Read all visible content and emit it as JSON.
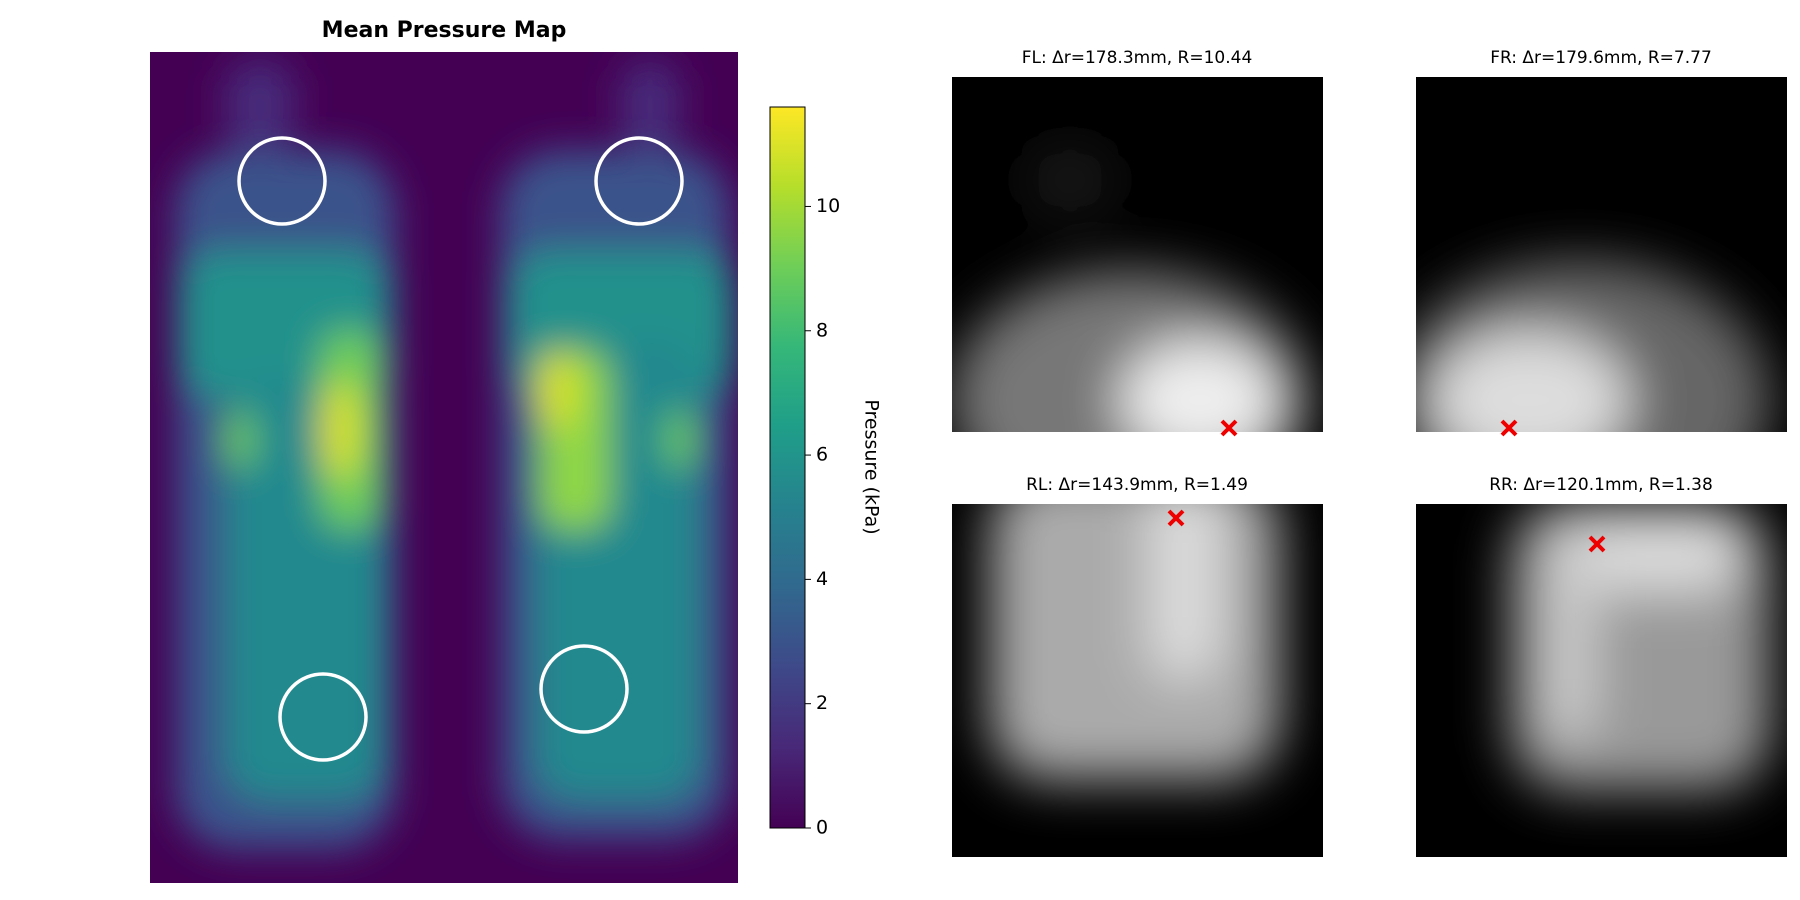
{
  "chart_data": [
    {
      "type": "heatmap",
      "title": "Mean Pressure Map",
      "colorbar": {
        "label": "Pressure (kPa)",
        "colormap": "viridis",
        "lim": [
          0,
          11.6
        ],
        "ticks": [
          0,
          2,
          4,
          6,
          8,
          10
        ]
      }
    },
    {
      "type": "image",
      "title": "FL: Δr=178.3mm, R=10.44"
    },
    {
      "type": "image",
      "title": "FR: Δr=179.6mm, R=7.77"
    },
    {
      "type": "image",
      "title": "RL: Δr=143.9mm, R=1.49"
    },
    {
      "type": "image",
      "title": "RR: Δr=120.1mm, R=1.38"
    }
  ]
}
